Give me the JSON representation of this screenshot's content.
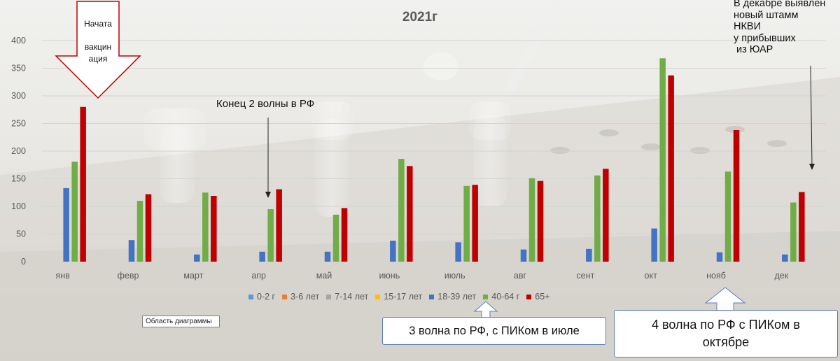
{
  "colors": {
    "series_0_2": "#5b9bd5",
    "series_3_6": "#ed7d31",
    "series_7_14": "#a5a5a5",
    "series_15_17": "#ffc000",
    "series_18_39": "#4472c4",
    "series_40_64": "#70ad47",
    "series_65_plus": "#c00000",
    "axis_text": "#595959",
    "gridline": "#d3d3d3",
    "callout_border": "#5b7db5"
  },
  "chart_data": {
    "type": "bar",
    "title": "2021г",
    "xlabel": "",
    "ylabel": "",
    "ylim": [
      0,
      400
    ],
    "yticks": [
      0,
      50,
      100,
      150,
      200,
      250,
      300,
      350,
      400
    ],
    "grid": true,
    "legend_position": "bottom",
    "categories": [
      "янв",
      "февр",
      "март",
      "апр",
      "май",
      "июнь",
      "июль",
      "авг",
      "сент",
      "окт",
      "нояб",
      "дек"
    ],
    "series": [
      {
        "name": "0-2 г",
        "color": "#5b9bd5",
        "values": [
          0,
          0,
          0,
          0,
          0,
          0,
          0,
          0,
          0,
          0,
          0,
          0
        ]
      },
      {
        "name": "3-6 лет",
        "color": "#ed7d31",
        "values": [
          0,
          0,
          0,
          0,
          0,
          0,
          0,
          0,
          0,
          0,
          0,
          0
        ]
      },
      {
        "name": "7-14 лет",
        "color": "#a5a5a5",
        "values": [
          0,
          0,
          0,
          0,
          0,
          0,
          0,
          0,
          0,
          0,
          0,
          0
        ]
      },
      {
        "name": "15-17 лет",
        "color": "#ffc000",
        "values": [
          0,
          0,
          0,
          0,
          0,
          0,
          0,
          0,
          0,
          0,
          0,
          0
        ]
      },
      {
        "name": "18-39 лет",
        "color": "#4472c4",
        "values": [
          133,
          39,
          13,
          18,
          18,
          38,
          35,
          22,
          23,
          60,
          17,
          13
        ]
      },
      {
        "name": "40-64 г",
        "color": "#70ad47",
        "values": [
          181,
          110,
          125,
          95,
          85,
          186,
          137,
          151,
          156,
          368,
          163,
          107
        ]
      },
      {
        "name": "65+",
        "color": "#c00000",
        "values": [
          280,
          122,
          119,
          131,
          97,
          173,
          139,
          146,
          168,
          337,
          238,
          126
        ]
      }
    ],
    "annotations": {
      "vaccination_start": [
        "Начата",
        "вакцин",
        "ация"
      ],
      "end_second_wave": "Конец 2 волны в РФ",
      "december_strain": [
        "В декабре выявлен",
        "новый штамм",
        "НКВИ",
        "у прибывших",
        " из ЮАР"
      ],
      "third_wave": "3 волна по РФ, с ПИКом в июле",
      "fourth_wave": [
        "4 волна по РФ с ПИКом в",
        "октябре"
      ]
    },
    "chart_area_label": "Область диаграммы"
  }
}
